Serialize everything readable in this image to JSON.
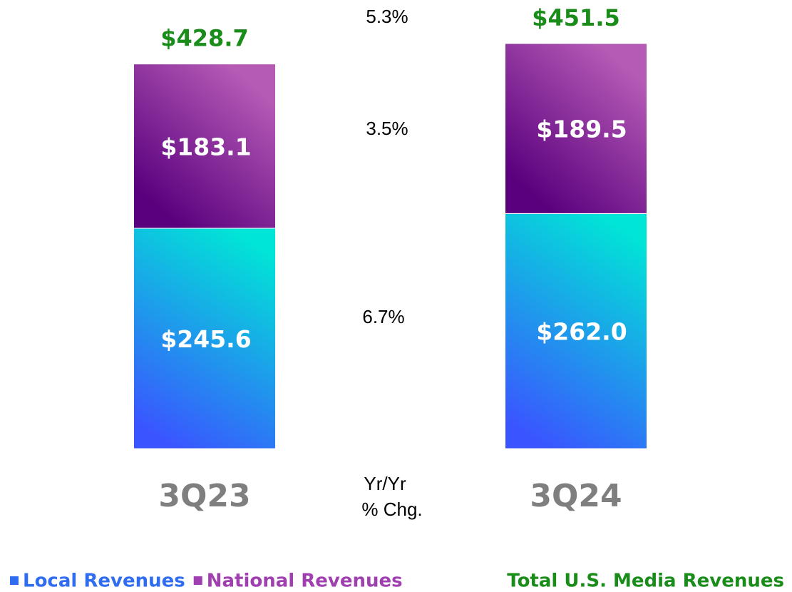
{
  "chart_data": {
    "type": "stacked_bar",
    "categories": [
      "3Q23",
      "3Q24"
    ],
    "series": [
      {
        "name": "Local Revenues",
        "color": "#2f6cf0",
        "gradient": [
          "#3a55ff",
          "#00e6d6"
        ],
        "values": [
          245.6,
          262.0
        ],
        "value_labels": [
          "$245.6",
          "$262.0"
        ],
        "change_label": "6.7%"
      },
      {
        "name": "National Revenues",
        "color": "#a040b0",
        "gradient": [
          "#5a007e",
          "#b55ab5"
        ],
        "values": [
          183.1,
          189.5
        ],
        "value_labels": [
          "$183.1",
          "$189.5"
        ],
        "change_label": "3.5%"
      }
    ],
    "total_name": "Total U.S. Media Revenues",
    "total_color": "#1a8c1a",
    "totals": [
      428.7,
      451.5
    ],
    "total_labels": [
      "$428.7",
      "$451.5"
    ],
    "total_change_label": "5.3%",
    "change_header": [
      "Yr/Yr",
      "% Chg."
    ]
  }
}
